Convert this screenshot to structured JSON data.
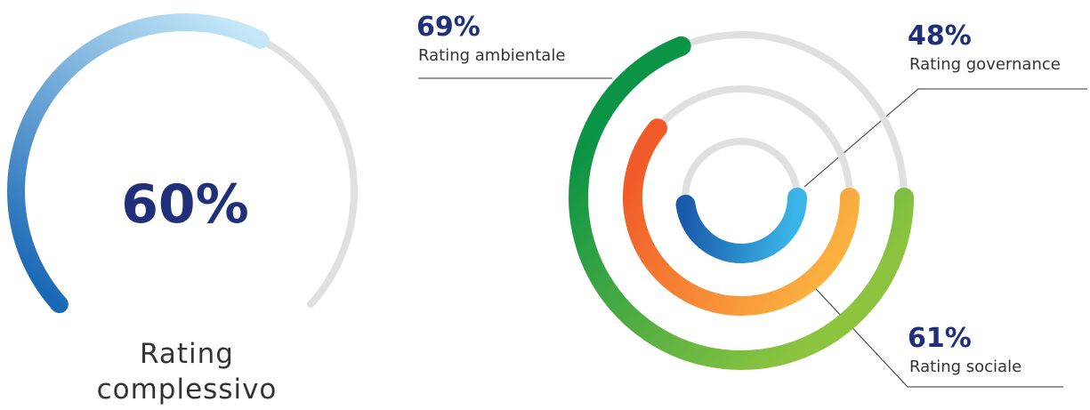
{
  "chart_data": [
    {
      "type": "gauge",
      "categories": [
        "Rating complessivo"
      ],
      "values": [
        60
      ],
      "value_labels": [
        "60%"
      ],
      "color": [
        "#1a68b5",
        "#c4e8f8"
      ],
      "track_color": "#e0e0e0",
      "max": 100
    },
    {
      "type": "radial_bar",
      "categories": [
        "Rating ambientale",
        "Rating sociale",
        "Rating governance"
      ],
      "values": [
        69,
        61,
        48
      ],
      "value_labels": [
        "69%",
        "61%",
        "48%"
      ],
      "colors": [
        [
          "#8cc43f",
          "#0b9346"
        ],
        [
          "#fbb040",
          "#f15a29"
        ],
        [
          "#3bb5e8",
          "#1a5aaa"
        ]
      ],
      "track_color": "#e0e0e0",
      "max": 100
    }
  ]
}
